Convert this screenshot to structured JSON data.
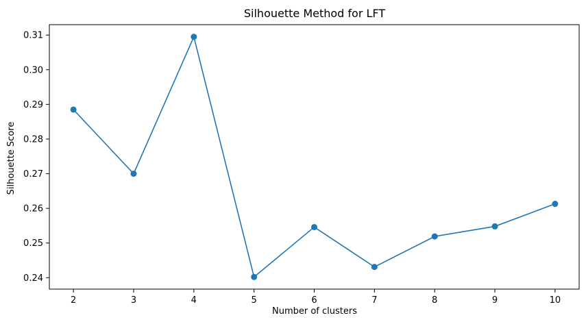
{
  "chart_data": {
    "type": "line",
    "title": "Silhouette Method for LFT",
    "xlabel": "Number of clusters",
    "ylabel": "Silhouette Score",
    "x": [
      2,
      3,
      4,
      5,
      6,
      7,
      8,
      9,
      10
    ],
    "y": [
      0.2885,
      0.27,
      0.3095,
      0.2402,
      0.2546,
      0.2431,
      0.2519,
      0.2548,
      0.2613
    ],
    "xlim": [
      1.6,
      10.4
    ],
    "ylim": [
      0.2367,
      0.313
    ],
    "xticks": [
      "2",
      "3",
      "4",
      "5",
      "6",
      "7",
      "8",
      "9",
      "10"
    ],
    "yticks": [
      "0.24",
      "0.25",
      "0.26",
      "0.27",
      "0.28",
      "0.29",
      "0.30",
      "0.31"
    ],
    "ytick_values": [
      0.24,
      0.25,
      0.26,
      0.27,
      0.28,
      0.29,
      0.3,
      0.31
    ],
    "marker": "circle",
    "grid": false,
    "legend": false,
    "colors": {
      "line": "#1f77b4",
      "axes": "#000000"
    }
  }
}
